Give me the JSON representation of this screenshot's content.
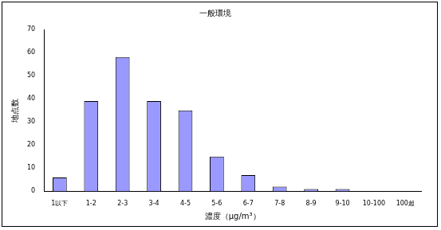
{
  "chart_data": {
    "type": "bar",
    "title": "一般環境",
    "x_label": "濃度（μg/m³）",
    "y_label": "地点数",
    "categories": [
      "1以下",
      "1-2",
      "2-3",
      "3-4",
      "4-5",
      "5-6",
      "6-7",
      "7-8",
      "8-9",
      "9-10",
      "10-100",
      "100超"
    ],
    "values": [
      6,
      39,
      58,
      39,
      35,
      15,
      7,
      2,
      1,
      1,
      0,
      0
    ],
    "color": "#9999ff",
    "ylim": [
      0,
      70
    ],
    "yticks": [
      0,
      10,
      20,
      30,
      40,
      50,
      60,
      70
    ],
    "grid": false
  }
}
